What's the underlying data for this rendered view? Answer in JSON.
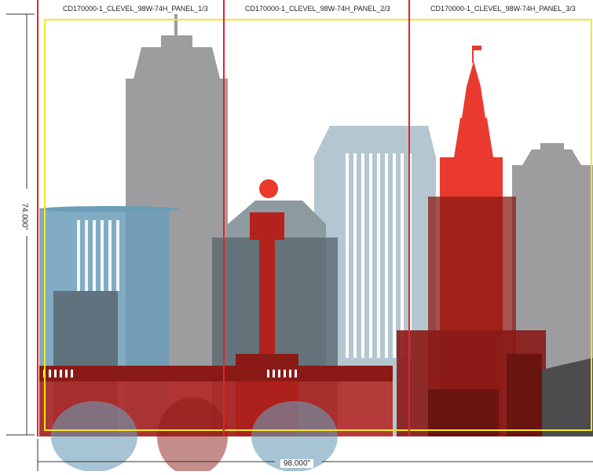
{
  "panels": [
    {
      "label": "CD170000-1_CLEVEL_98W-74H_PANEL_1/3"
    },
    {
      "label": "CD170000-1_CLEVEL_98W-74H_PANEL_2/3"
    },
    {
      "label": "CD170000-1_CLEVEL_98W-74H_PANEL_3/3"
    }
  ],
  "dimensions": {
    "width_label": "98.000\"",
    "height_label": "74.000\""
  },
  "colors": {
    "panel_divider": "#e8202a",
    "safe_area": "#f5e61c",
    "dimension_line": "#333333",
    "gray_tower": "#9d9d9f",
    "light_blue": "#b4c6d0",
    "steel_blue": "#6b9db8",
    "dark_slate": "#57646c",
    "bright_red": "#ea3a2f",
    "dark_red": "#8a1a16",
    "deep_red": "#6a1410",
    "dark_gray": "#4c4c4e"
  }
}
